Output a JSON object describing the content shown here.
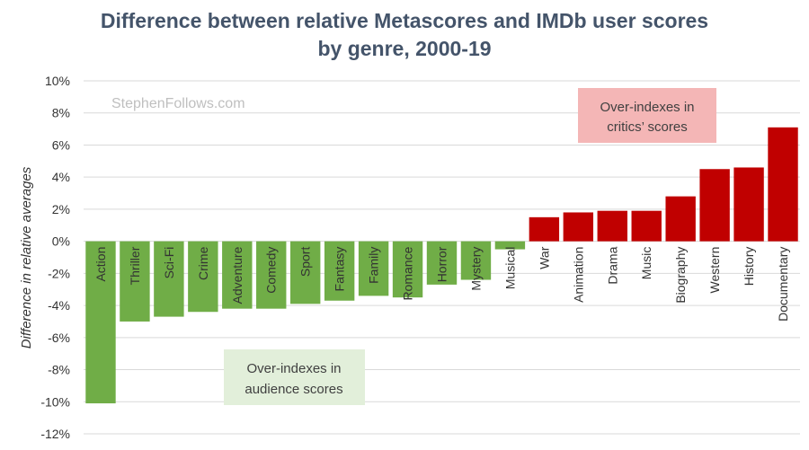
{
  "chart_data": {
    "type": "bar",
    "title": "Difference between relative Metascores and IMDb user scores",
    "subtitle": "by genre, 2000-19",
    "ylabel": "Difference in relative averages",
    "xlabel": "",
    "ylim": [
      -12,
      10
    ],
    "yticks": [
      10,
      8,
      6,
      4,
      2,
      0,
      -2,
      -4,
      -6,
      -8,
      -10,
      -12
    ],
    "ytick_labels": [
      "10%",
      "8%",
      "6%",
      "4%",
      "2%",
      "0%",
      "-2%",
      "-4%",
      "-6%",
      "-8%",
      "-10%",
      "-12%"
    ],
    "grid": true,
    "categories": [
      "Action",
      "Thriller",
      "Sci-Fi",
      "Crime",
      "Adventure",
      "Comedy",
      "Sport",
      "Fantasy",
      "Family",
      "Romance",
      "Horror",
      "Mystery",
      "Musical",
      "War",
      "Animation",
      "Drama",
      "Music",
      "Biography",
      "Western",
      "History",
      "Documentary"
    ],
    "values": [
      -10.1,
      -5.0,
      -4.7,
      -4.4,
      -4.2,
      -4.2,
      -3.9,
      -3.7,
      -3.4,
      -3.5,
      -2.7,
      -2.4,
      -0.5,
      1.5,
      1.8,
      1.9,
      1.9,
      2.8,
      4.5,
      4.6,
      7.1
    ],
    "colors": {
      "negative": "#70ad47",
      "positive": "#c00000"
    },
    "watermark": "StephenFollows.com",
    "annotations": {
      "critics": [
        "Over-indexes in",
        "critics’ scores"
      ],
      "audience": [
        "Over-indexes in",
        "audience scores"
      ]
    },
    "annotation_colors": {
      "critics_bg": "#f4b6b6",
      "audience_bg": "#e2efda"
    }
  }
}
